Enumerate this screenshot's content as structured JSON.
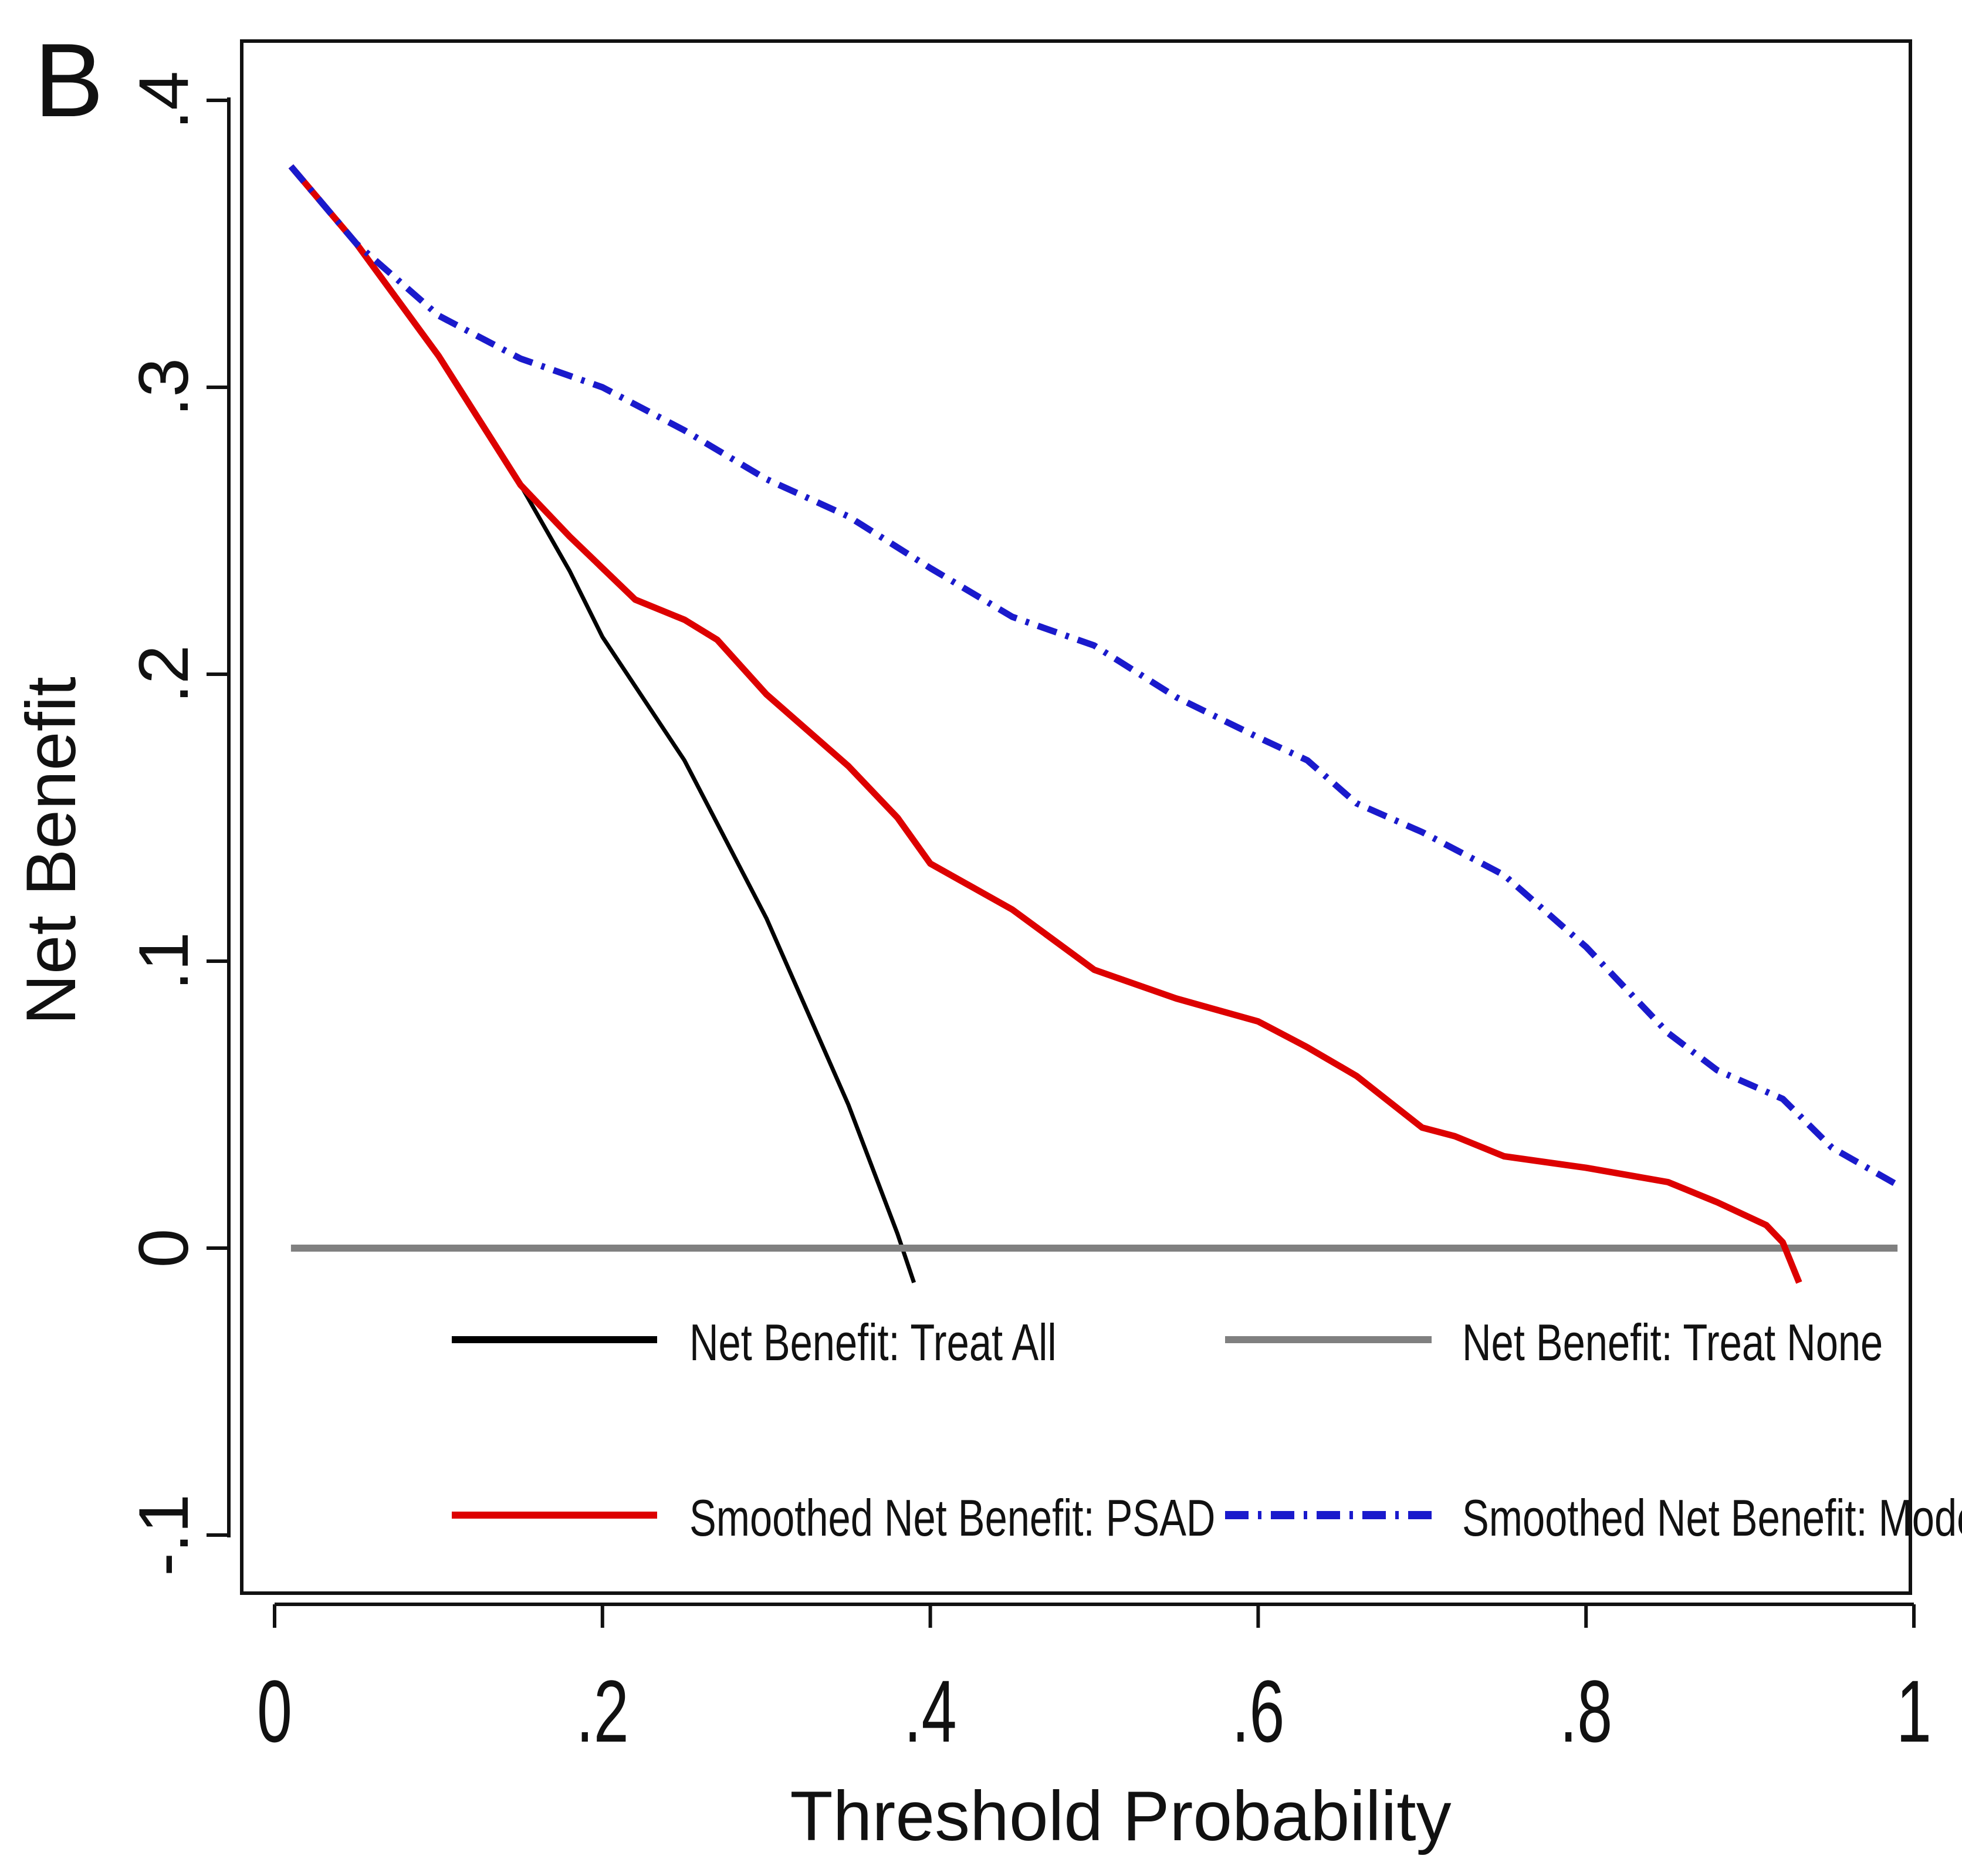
{
  "chart_data": {
    "type": "line",
    "panel_label": "B",
    "title": "",
    "xlabel": "Threshold Probability",
    "ylabel": "Net Benefit",
    "xlim": [
      0,
      1
    ],
    "ylim": [
      -0.1,
      0.4
    ],
    "xticks": [
      {
        "value": 0,
        "label": "0"
      },
      {
        "value": 0.2,
        "label": ".2"
      },
      {
        "value": 0.4,
        "label": ".4"
      },
      {
        "value": 0.6,
        "label": ".6"
      },
      {
        "value": 0.8,
        "label": ".8"
      },
      {
        "value": 1,
        "label": "1"
      }
    ],
    "yticks": [
      {
        "value": -0.1,
        "label": "-.1"
      },
      {
        "value": 0,
        "label": "0"
      },
      {
        "value": 0.1,
        "label": ".1"
      },
      {
        "value": 0.2,
        "label": ".2"
      },
      {
        "value": 0.3,
        "label": ".3"
      },
      {
        "value": 0.4,
        "label": ".4"
      }
    ],
    "grid": false,
    "legend_position": "bottom-inside",
    "series": [
      {
        "name": "Net Benefit: Treat All",
        "color": "#000000",
        "style": "solid",
        "x": [
          0.01,
          0.05,
          0.1,
          0.15,
          0.18,
          0.2,
          0.25,
          0.3,
          0.35,
          0.38,
          0.39
        ],
        "y": [
          0.377,
          0.35,
          0.311,
          0.266,
          0.236,
          0.213,
          0.17,
          0.115,
          0.05,
          0.005,
          -0.012
        ]
      },
      {
        "name": "Net Benefit: Treat None",
        "color": "#808080",
        "style": "solid",
        "x": [
          0.01,
          0.99
        ],
        "y": [
          0,
          0
        ]
      },
      {
        "name": "Smoothed Net Benefit: PSAD",
        "color": "#dd0000",
        "style": "solid",
        "x": [
          0.01,
          0.05,
          0.1,
          0.15,
          0.18,
          0.2,
          0.22,
          0.25,
          0.27,
          0.3,
          0.35,
          0.38,
          0.4,
          0.45,
          0.5,
          0.55,
          0.6,
          0.63,
          0.66,
          0.7,
          0.72,
          0.75,
          0.8,
          0.85,
          0.88,
          0.91,
          0.92,
          0.93
        ],
        "y": [
          0.377,
          0.35,
          0.311,
          0.266,
          0.248,
          0.237,
          0.226,
          0.219,
          0.212,
          0.193,
          0.168,
          0.15,
          0.134,
          0.118,
          0.097,
          0.087,
          0.079,
          0.07,
          0.06,
          0.042,
          0.039,
          0.032,
          0.028,
          0.023,
          0.016,
          0.008,
          0.002,
          -0.012
        ]
      },
      {
        "name": "Smoothed Net Benefit: Model",
        "color": "#1a1acc",
        "style": "dash-dot",
        "x": [
          0.01,
          0.05,
          0.1,
          0.15,
          0.2,
          0.25,
          0.3,
          0.35,
          0.4,
          0.45,
          0.5,
          0.55,
          0.6,
          0.63,
          0.66,
          0.7,
          0.75,
          0.8,
          0.85,
          0.88,
          0.9,
          0.92,
          0.95,
          0.99
        ],
        "y": [
          0.377,
          0.35,
          0.325,
          0.31,
          0.3,
          0.285,
          0.268,
          0.255,
          0.237,
          0.22,
          0.21,
          0.192,
          0.178,
          0.17,
          0.155,
          0.145,
          0.13,
          0.105,
          0.075,
          0.062,
          0.057,
          0.052,
          0.035,
          0.022
        ]
      }
    ]
  }
}
